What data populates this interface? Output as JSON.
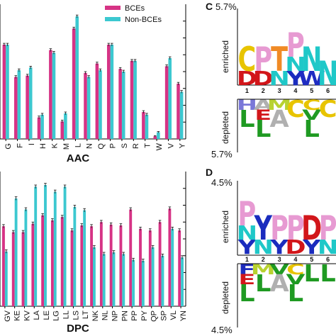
{
  "chart_data": [
    {
      "id": "aac",
      "type": "bar",
      "xlabel": "AAC",
      "categories": [
        "G",
        "F",
        "I",
        "H",
        "K",
        "M",
        "L",
        "N",
        "Q",
        "P",
        "S",
        "R",
        "T",
        "W",
        "V",
        "Y"
      ],
      "series": [
        {
          "name": "BCEs",
          "color": "#d63385",
          "values": [
            7.0,
            4.6,
            4.7,
            1.6,
            6.6,
            1.3,
            8.2,
            4.9,
            5.6,
            7.0,
            5.2,
            5.8,
            2.0,
            0.2,
            5.4,
            4.1
          ],
          "errors": [
            0.1,
            0.1,
            0.1,
            0.1,
            0.1,
            0.1,
            0.1,
            0.1,
            0.1,
            0.1,
            0.1,
            0.1,
            0.1,
            0.05,
            0.1,
            0.1
          ]
        },
        {
          "name": "Non-BCEs",
          "color": "#3cc8d0",
          "values": [
            7.0,
            5.1,
            5.3,
            1.8,
            6.4,
            1.9,
            9.1,
            4.6,
            5.1,
            7.0,
            5.0,
            5.8,
            1.8,
            0.5,
            6.0,
            3.5
          ],
          "errors": [
            0.1,
            0.1,
            0.1,
            0.1,
            0.1,
            0.1,
            0.1,
            0.1,
            0.1,
            0.1,
            0.1,
            0.1,
            0.1,
            0.05,
            0.1,
            0.1
          ]
        }
      ],
      "ylim": [
        0,
        10
      ],
      "legend": "top"
    },
    {
      "id": "dpc",
      "type": "bar",
      "xlabel": "DPC",
      "categories": [
        "GV",
        "KE",
        "KV",
        "LA",
        "LE",
        "LG",
        "LL",
        "LS",
        "LT",
        "NK",
        "NL",
        "NP",
        "PN",
        "PP",
        "PY",
        "QP",
        "SP",
        "VL",
        "YN"
      ],
      "series": [
        {
          "name": "BCEs",
          "color": "#d63385",
          "values": [
            0.95,
            0.88,
            0.88,
            0.98,
            1.08,
            1.02,
            1.06,
            0.9,
            0.96,
            0.95,
            1.0,
            0.97,
            0.96,
            1.15,
            0.92,
            0.9,
            1.0,
            1.16,
            0.9
          ],
          "errors": [
            0.02,
            0.02,
            0.02,
            0.02,
            0.02,
            0.02,
            0.02,
            0.02,
            0.02,
            0.02,
            0.02,
            0.02,
            0.02,
            0.02,
            0.02,
            0.02,
            0.02,
            0.02,
            0.02
          ]
        },
        {
          "name": "Non-BCEs",
          "color": "#3cc8d0",
          "values": [
            0.65,
            1.28,
            1.15,
            1.42,
            1.44,
            1.36,
            1.42,
            1.18,
            1.14,
            0.7,
            0.62,
            0.64,
            0.62,
            0.55,
            0.54,
            0.7,
            0.6,
            0.92,
            0.58
          ],
          "errors": [
            0.02,
            0.02,
            0.02,
            0.02,
            0.02,
            0.02,
            0.02,
            0.02,
            0.02,
            0.02,
            0.02,
            0.02,
            0.02,
            0.02,
            0.02,
            0.02,
            0.02,
            0.02,
            0.02
          ]
        }
      ],
      "ylim": [
        0,
        1.6
      ]
    }
  ],
  "legend_entries": [
    {
      "label": "BCEs",
      "color": "#d63385"
    },
    {
      "label": "Non-BCEs",
      "color": "#3cc8d0"
    }
  ],
  "panels": {
    "c": {
      "label": "C",
      "top_pct": "5.7%",
      "bottom_pct": "5.7%",
      "enriched_label": "enriched",
      "depleted_label": "depleted"
    },
    "d": {
      "label": "D",
      "top_pct": "4.5%",
      "bottom_pct": "4.5%",
      "enriched_label": "enriched",
      "depleted_label": "depleted"
    }
  },
  "logos": {
    "c": {
      "positions": [
        "1",
        "2",
        "3",
        "4",
        "5",
        "6"
      ],
      "enriched": [
        [
          "D",
          "C"
        ],
        [
          "D",
          "P"
        ],
        [
          "N",
          "T"
        ],
        [
          "Y",
          "N",
          "P"
        ],
        [
          "W",
          "N"
        ],
        [
          "N"
        ]
      ],
      "depleted": [
        [
          "H",
          "L"
        ],
        [
          "A",
          "E",
          "L"
        ],
        [
          "M",
          "A"
        ],
        [
          "C"
        ],
        [
          "C",
          "V",
          "L"
        ],
        [
          "C"
        ]
      ]
    },
    "d": {
      "positions": [
        "1",
        "2",
        "3",
        "4",
        "5",
        "6"
      ],
      "enriched": [
        [
          "Y",
          "N",
          "P"
        ],
        [
          "N",
          "Y"
        ],
        [
          "Y",
          "P"
        ],
        [
          "D",
          "P"
        ],
        [
          "Y",
          "D"
        ],
        [
          "N",
          "P"
        ]
      ],
      "depleted": [
        [
          "F",
          "E",
          "L"
        ],
        [
          "M",
          "L"
        ],
        [
          "V",
          "A"
        ],
        [
          "C",
          "V",
          "L"
        ],
        [
          "L"
        ],
        [
          "L"
        ]
      ]
    }
  },
  "letter_colors": {
    "A": "#b0b0b0",
    "C": "#e8c400",
    "D": "#d2161a",
    "E": "#d2161a",
    "F": "#1e2cbc",
    "G": "#a4a4a4",
    "H": "#7a78d8",
    "I": "#1b9a2e",
    "K": "#3f3fd0",
    "L": "#1f9a22",
    "M": "#b8d230",
    "N": "#1fc8c8",
    "P": "#e79ad2",
    "Q": "#39c8c8",
    "R": "#1f2cc2",
    "S": "#f08a25",
    "T": "#f08a25",
    "V": "#1f9a22",
    "W": "#1f2cc2",
    "Y": "#1a2cbe"
  }
}
